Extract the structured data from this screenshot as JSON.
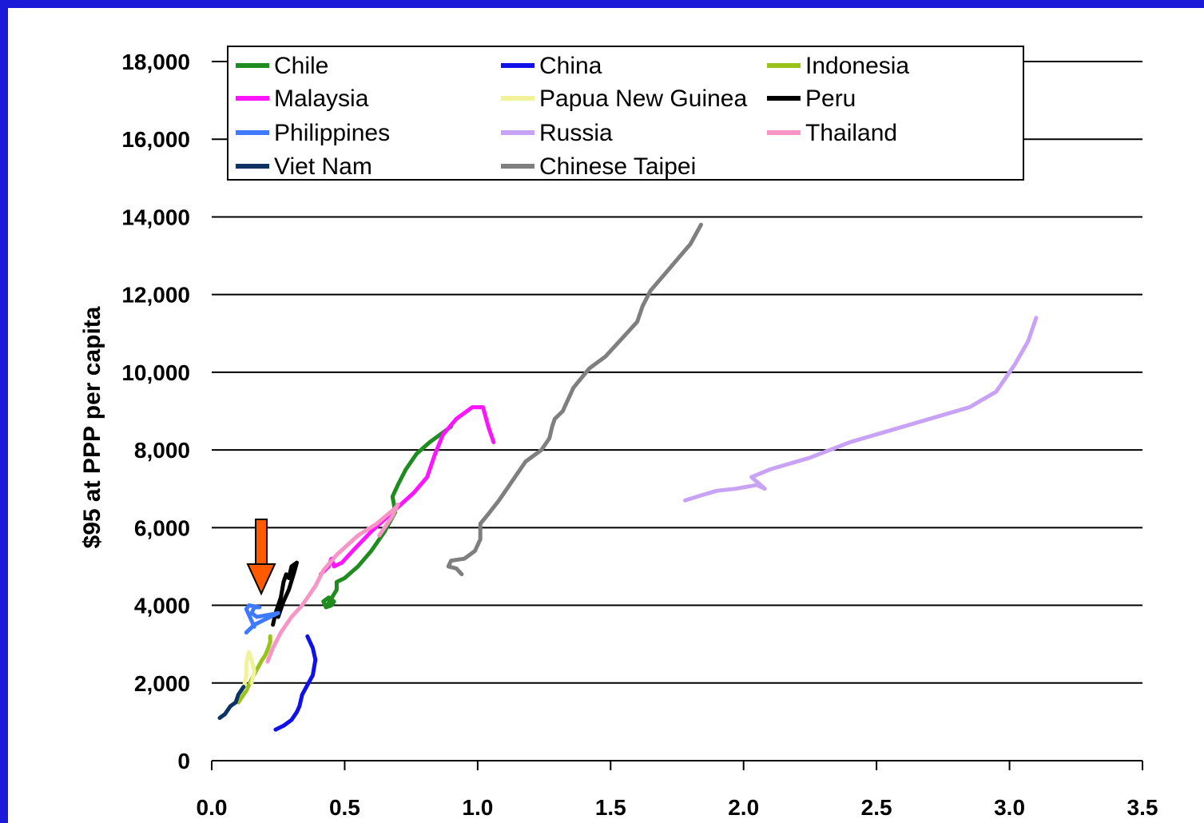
{
  "slide": {
    "frame_color": "#1a1ad8",
    "arrow_color": "#ff5a00"
  },
  "chart_data": {
    "type": "line",
    "title": "",
    "xlabel": "",
    "ylabel": "$95 at PPP per capita",
    "xlim": [
      0,
      3.5
    ],
    "ylim": [
      0,
      18000
    ],
    "xticks": [
      "0.0",
      "0.5",
      "1.0",
      "1.5",
      "2.0",
      "2.5",
      "3.0",
      "3.5"
    ],
    "yticks": [
      "0",
      "2,000",
      "4,000",
      "6,000",
      "8,000",
      "10,000",
      "12,000",
      "14,000",
      "16,000",
      "18,000"
    ],
    "grid": "horizontal",
    "legend_position": "top",
    "series": [
      {
        "name": "Chile",
        "color": "#1f8c1f",
        "points": [
          [
            0.43,
            3950
          ],
          [
            0.45,
            4000
          ],
          [
            0.46,
            4100
          ],
          [
            0.44,
            4200
          ],
          [
            0.42,
            4100
          ],
          [
            0.43,
            3950
          ],
          [
            0.47,
            4400
          ],
          [
            0.47,
            4600
          ],
          [
            0.5,
            4700
          ],
          [
            0.55,
            5000
          ],
          [
            0.6,
            5400
          ],
          [
            0.65,
            5900
          ],
          [
            0.69,
            6400
          ],
          [
            0.68,
            6800
          ],
          [
            0.7,
            7100
          ],
          [
            0.73,
            7500
          ],
          [
            0.77,
            7900
          ],
          [
            0.82,
            8200
          ],
          [
            0.88,
            8500
          ],
          [
            0.9,
            8600
          ]
        ]
      },
      {
        "name": "China",
        "color": "#1010e8",
        "points": [
          [
            0.24,
            800
          ],
          [
            0.27,
            900
          ],
          [
            0.3,
            1050
          ],
          [
            0.32,
            1250
          ],
          [
            0.33,
            1400
          ],
          [
            0.34,
            1700
          ],
          [
            0.36,
            1950
          ],
          [
            0.38,
            2200
          ],
          [
            0.39,
            2600
          ],
          [
            0.38,
            2900
          ],
          [
            0.36,
            3200
          ]
        ]
      },
      {
        "name": "Indonesia",
        "color": "#99c21a",
        "points": [
          [
            0.1,
            1500
          ],
          [
            0.13,
            1800
          ],
          [
            0.15,
            2100
          ],
          [
            0.17,
            2350
          ],
          [
            0.19,
            2600
          ],
          [
            0.2,
            2700
          ],
          [
            0.21,
            2850
          ],
          [
            0.22,
            3050
          ],
          [
            0.22,
            3200
          ]
        ]
      },
      {
        "name": "Malaysia",
        "color": "#ff14ff",
        "points": [
          [
            0.41,
            4800
          ],
          [
            0.44,
            5000
          ],
          [
            0.45,
            5200
          ],
          [
            0.46,
            5000
          ],
          [
            0.49,
            5100
          ],
          [
            0.53,
            5400
          ],
          [
            0.6,
            5900
          ],
          [
            0.68,
            6400
          ],
          [
            0.76,
            6900
          ],
          [
            0.81,
            7300
          ],
          [
            0.84,
            7900
          ],
          [
            0.87,
            8400
          ],
          [
            0.92,
            8800
          ],
          [
            0.98,
            9100
          ],
          [
            1.02,
            9100
          ],
          [
            1.04,
            8600
          ],
          [
            1.06,
            8200
          ]
        ]
      },
      {
        "name": "Papua New Guinea",
        "color": "#f2f29a",
        "points": [
          [
            0.12,
            1850
          ],
          [
            0.13,
            2200
          ],
          [
            0.13,
            2500
          ],
          [
            0.14,
            2800
          ],
          [
            0.15,
            2600
          ],
          [
            0.16,
            2300
          ],
          [
            0.15,
            2000
          ]
        ]
      },
      {
        "name": "Peru",
        "color": "#000000",
        "points": [
          [
            0.23,
            3500
          ],
          [
            0.24,
            3800
          ],
          [
            0.26,
            4200
          ],
          [
            0.27,
            4600
          ],
          [
            0.28,
            4800
          ],
          [
            0.29,
            4700
          ],
          [
            0.3,
            5000
          ],
          [
            0.32,
            5100
          ],
          [
            0.31,
            4850
          ],
          [
            0.29,
            4400
          ],
          [
            0.27,
            4100
          ],
          [
            0.25,
            3700
          ]
        ]
      },
      {
        "name": "Philippines",
        "color": "#3d7aff",
        "points": [
          [
            0.13,
            3300
          ],
          [
            0.16,
            3500
          ],
          [
            0.19,
            3600
          ],
          [
            0.22,
            3700
          ],
          [
            0.25,
            3800
          ],
          [
            0.21,
            3750
          ],
          [
            0.17,
            3700
          ],
          [
            0.15,
            3800
          ],
          [
            0.16,
            3950
          ],
          [
            0.18,
            3950
          ],
          [
            0.14,
            4000
          ],
          [
            0.13,
            3900
          ],
          [
            0.15,
            3600
          ],
          [
            0.16,
            3450
          ]
        ]
      },
      {
        "name": "Russia",
        "color": "#c8a2f5",
        "points": [
          [
            1.78,
            6700
          ],
          [
            1.85,
            6850
          ],
          [
            1.9,
            6950
          ],
          [
            1.97,
            7000
          ],
          [
            2.05,
            7100
          ],
          [
            2.08,
            7000
          ],
          [
            2.03,
            7300
          ],
          [
            2.1,
            7500
          ],
          [
            2.25,
            7800
          ],
          [
            2.4,
            8200
          ],
          [
            2.55,
            8500
          ],
          [
            2.7,
            8800
          ],
          [
            2.85,
            9100
          ],
          [
            2.95,
            9500
          ],
          [
            3.02,
            10200
          ],
          [
            3.07,
            10800
          ],
          [
            3.1,
            11400
          ]
        ]
      },
      {
        "name": "Thailand",
        "color": "#f795c6",
        "points": [
          [
            0.21,
            2550
          ],
          [
            0.23,
            2900
          ],
          [
            0.26,
            3300
          ],
          [
            0.3,
            3700
          ],
          [
            0.34,
            4000
          ],
          [
            0.39,
            4500
          ],
          [
            0.42,
            4900
          ],
          [
            0.47,
            5300
          ],
          [
            0.55,
            5800
          ],
          [
            0.62,
            6100
          ],
          [
            0.69,
            6500
          ],
          [
            0.7,
            6600
          ],
          [
            0.68,
            6300
          ],
          [
            0.63,
            5800
          ]
        ]
      },
      {
        "name": "Viet Nam",
        "color": "#0d3366",
        "points": [
          [
            0.03,
            1100
          ],
          [
            0.05,
            1200
          ],
          [
            0.07,
            1400
          ],
          [
            0.08,
            1450
          ],
          [
            0.09,
            1500
          ],
          [
            0.1,
            1700
          ],
          [
            0.11,
            1800
          ],
          [
            0.12,
            1900
          ]
        ]
      },
      {
        "name": "Chinese Taipei",
        "color": "#7f7f7f",
        "points": [
          [
            0.94,
            4800
          ],
          [
            0.92,
            4950
          ],
          [
            0.89,
            5000
          ],
          [
            0.9,
            5150
          ],
          [
            0.95,
            5200
          ],
          [
            0.99,
            5400
          ],
          [
            1.01,
            5700
          ],
          [
            1.01,
            6100
          ],
          [
            1.04,
            6350
          ],
          [
            1.08,
            6700
          ],
          [
            1.12,
            7100
          ],
          [
            1.18,
            7700
          ],
          [
            1.24,
            8000
          ],
          [
            1.27,
            8300
          ],
          [
            1.28,
            8600
          ],
          [
            1.29,
            8800
          ],
          [
            1.32,
            9000
          ],
          [
            1.36,
            9600
          ],
          [
            1.42,
            10100
          ],
          [
            1.48,
            10400
          ],
          [
            1.52,
            10700
          ],
          [
            1.56,
            11000
          ],
          [
            1.6,
            11300
          ],
          [
            1.62,
            11700
          ],
          [
            1.65,
            12100
          ],
          [
            1.7,
            12500
          ],
          [
            1.75,
            12900
          ],
          [
            1.8,
            13300
          ],
          [
            1.84,
            13800
          ]
        ]
      }
    ]
  }
}
